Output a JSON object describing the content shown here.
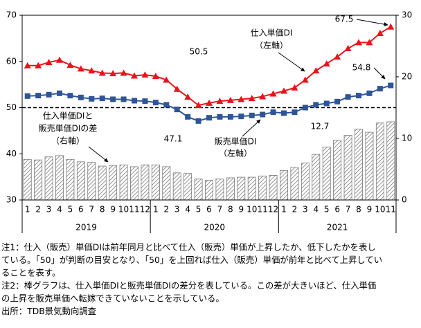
{
  "chart_data": {
    "type": "combo",
    "categories": [
      "1",
      "2",
      "3",
      "4",
      "5",
      "6",
      "7",
      "8",
      "9",
      "10",
      "11",
      "12",
      "1",
      "2",
      "3",
      "4",
      "5",
      "6",
      "7",
      "8",
      "9",
      "10",
      "11",
      "12",
      "1",
      "2",
      "3",
      "4",
      "5",
      "6",
      "7",
      "8",
      "9",
      "10",
      "11"
    ],
    "years": [
      "2019",
      "2020",
      "2021"
    ],
    "ylim": [
      30,
      70
    ],
    "yticks": [
      30,
      40,
      50,
      60,
      70
    ],
    "y2lim": [
      0,
      30
    ],
    "y2ticks": [
      0,
      10,
      20,
      30
    ],
    "reference_line": 50,
    "series": [
      {
        "name": "仕入単価DIと販売単価DIの差",
        "type": "bar",
        "axis": "y2",
        "color": "#777777",
        "values": [
          6.6,
          6.5,
          7.0,
          7.2,
          6.6,
          6.2,
          6.1,
          5.5,
          5.6,
          5.7,
          5.4,
          5.7,
          5.7,
          5.4,
          4.4,
          4.3,
          3.4,
          3.2,
          3.4,
          3.6,
          3.7,
          3.7,
          3.9,
          4.0,
          4.8,
          5.3,
          6.0,
          7.4,
          8.6,
          9.7,
          10.5,
          11.5,
          11.0,
          12.5,
          12.7
        ]
      },
      {
        "name": "仕入単価DI",
        "type": "line",
        "marker": "triangle",
        "color": "#e8141b",
        "values": [
          59.1,
          59.1,
          59.8,
          60.3,
          59.2,
          58.4,
          58.0,
          57.5,
          57.4,
          57.5,
          56.9,
          57.1,
          56.8,
          56.0,
          54.0,
          52.3,
          50.5,
          51.0,
          51.4,
          51.6,
          51.8,
          52.0,
          52.4,
          53.0,
          53.6,
          54.3,
          56.0,
          58.0,
          59.5,
          61.0,
          62.8,
          64.1,
          64.1,
          66.1,
          67.5
        ]
      },
      {
        "name": "販売単価DI",
        "type": "line",
        "marker": "square",
        "color": "#2e5597",
        "values": [
          52.5,
          52.6,
          52.8,
          53.1,
          52.6,
          52.2,
          51.9,
          52.0,
          51.8,
          51.8,
          51.5,
          51.4,
          51.1,
          50.6,
          49.6,
          48.0,
          47.1,
          47.8,
          48.0,
          48.0,
          48.1,
          48.3,
          48.5,
          49.0,
          48.8,
          49.0,
          50.0,
          50.6,
          50.9,
          51.3,
          52.3,
          52.6,
          53.1,
          54.1,
          54.8
        ]
      }
    ],
    "annotations": [
      "67.5",
      "54.8",
      "50.5",
      "47.1",
      "12.7",
      "仕入単価DI",
      "（左軸）",
      "販売単価DI",
      "（左軸）",
      "仕入単価DIと",
      "販売単価DIの差",
      "（右軸）"
    ]
  },
  "notes": [
    "注1：仕入（販売）単価DIは前年同月と比べて仕入（販売）単価が上昇したか、低下したかを表し",
    "ている。「50」が判断の目安となり、「50」を上回れば仕入（販売）単価が前年と比べて上昇してい",
    "ることを表す。",
    "注2：棒グラフは、仕入単価DIと販売単価DIの差分を表している。この差が大きいほど、仕入単価",
    "の上昇を販売単価へ転嫁できていないことを示している。",
    "出所：TDB景気動向調査"
  ]
}
